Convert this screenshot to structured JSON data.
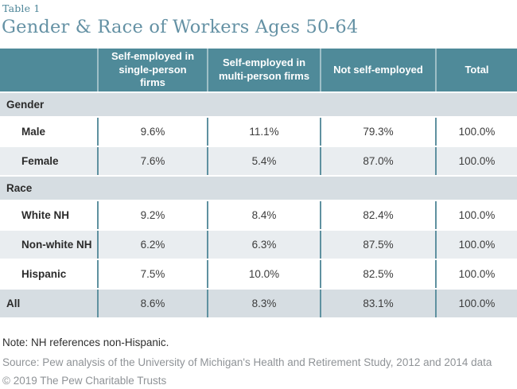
{
  "page": {
    "table_label": "Table 1",
    "title": "Gender & Race of Workers Ages 50-64"
  },
  "table": {
    "columns": [
      "",
      "Self-employed in single-person firms",
      "Self-employed in multi-person firms",
      "Not self-employed",
      "Total"
    ],
    "sections": [
      {
        "label": "Gender",
        "rows": [
          {
            "label": "Male",
            "values": [
              "9.6%",
              "11.1%",
              "79.3%",
              "100.0%"
            ]
          },
          {
            "label": "Female",
            "values": [
              "7.6%",
              "5.4%",
              "87.0%",
              "100.0%"
            ]
          }
        ]
      },
      {
        "label": "Race",
        "rows": [
          {
            "label": "White NH",
            "values": [
              "9.2%",
              "8.4%",
              "82.4%",
              "100.0%"
            ]
          },
          {
            "label": "Non-white NH",
            "values": [
              "6.2%",
              "6.3%",
              "87.5%",
              "100.0%"
            ]
          },
          {
            "label": "Hispanic",
            "values": [
              "7.5%",
              "10.0%",
              "82.5%",
              "100.0%"
            ]
          }
        ]
      }
    ],
    "total_row": {
      "label": "All",
      "values": [
        "8.6%",
        "8.3%",
        "83.1%",
        "100.0%"
      ]
    }
  },
  "footer": {
    "note": "Note: NH references non-Hispanic.",
    "source": "Source: Pew analysis of the University of Michigan's Health and Retirement Study, 2012 and 2014 data",
    "copyright": "© 2019 The Pew Charitable Trusts"
  },
  "colors": {
    "header_teal": "#4f8a99",
    "divider_teal": "#5f91a0",
    "section_bg": "#d6dde2",
    "alt_row_bg": "#e9edf0",
    "title_color": "#6491a4"
  },
  "chart_data": {
    "type": "table",
    "title": "Gender & Race of Workers Ages 50-64",
    "table_label": "Table 1",
    "columns": [
      "Self-employed in single-person firms",
      "Self-employed in multi-person firms",
      "Not self-employed",
      "Total"
    ],
    "row_groups": [
      {
        "group": "Gender",
        "rows": [
          {
            "label": "Male",
            "values_pct": [
              9.6,
              11.1,
              79.3,
              100.0
            ]
          },
          {
            "label": "Female",
            "values_pct": [
              7.6,
              5.4,
              87.0,
              100.0
            ]
          }
        ]
      },
      {
        "group": "Race",
        "rows": [
          {
            "label": "White NH",
            "values_pct": [
              9.2,
              8.4,
              82.4,
              100.0
            ]
          },
          {
            "label": "Non-white NH",
            "values_pct": [
              6.2,
              6.3,
              87.5,
              100.0
            ]
          },
          {
            "label": "Hispanic",
            "values_pct": [
              7.5,
              10.0,
              82.5,
              100.0
            ]
          }
        ]
      },
      {
        "group": null,
        "rows": [
          {
            "label": "All",
            "values_pct": [
              8.6,
              8.3,
              83.1,
              100.0
            ]
          }
        ]
      }
    ],
    "note": "Note: NH references non-Hispanic.",
    "source": "Source: Pew analysis of the University of Michigan's Health and Retirement Study, 2012 and 2014 data",
    "copyright": "© 2019 The Pew Charitable Trusts"
  }
}
